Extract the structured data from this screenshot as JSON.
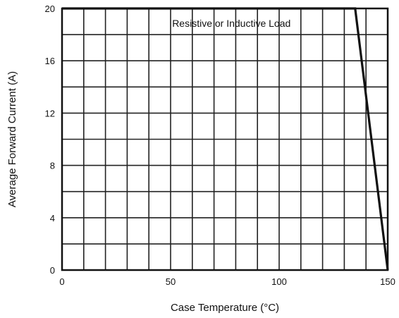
{
  "chart_data": {
    "type": "line",
    "title": "",
    "annotation": "Resistive or Inductive Load",
    "xlabel": "Case Temperature (°C)",
    "ylabel": "Average Forward Current (A)",
    "xlim": [
      0,
      150
    ],
    "ylim": [
      0,
      20
    ],
    "x_ticks": [
      0,
      50,
      100,
      150
    ],
    "y_ticks": [
      0,
      4,
      8,
      12,
      16,
      20
    ],
    "x_tick_labels": [
      "0",
      "50",
      "100",
      "150"
    ],
    "y_tick_labels": [
      "0",
      "4",
      "8",
      "12",
      "16",
      "20"
    ],
    "x_grid_step": 10,
    "y_grid_step": 2,
    "grid": true,
    "series": [
      {
        "x": [
          0,
          135,
          150
        ],
        "y": [
          20,
          20,
          0
        ],
        "color": "#111111"
      }
    ]
  }
}
